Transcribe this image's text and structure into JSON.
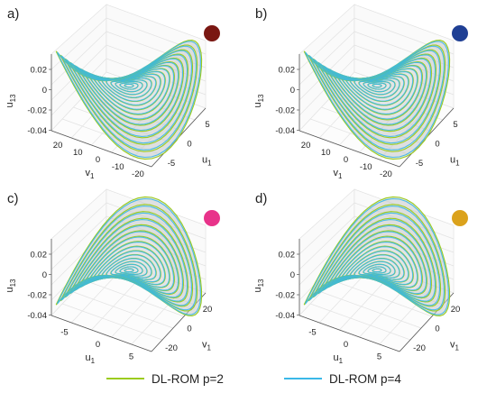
{
  "panels": [
    {
      "label": "a)",
      "dot_color": "#7a1712",
      "zlabel": "u",
      "zlabel_sub": "13",
      "ax1_label": "v",
      "ax1_sub": "1",
      "ax2_label": "u",
      "ax2_sub": "1",
      "z_ticks": [
        "0.02",
        "0",
        "-0.02",
        "-0.04"
      ],
      "ax1_ticks": [
        "20",
        "10",
        "0",
        "-10",
        "-20"
      ],
      "ax2_ticks": [
        "5",
        "0",
        "-5"
      ],
      "orientation": "a"
    },
    {
      "label": "b)",
      "dot_color": "#1f3f94",
      "zlabel": "u",
      "zlabel_sub": "13",
      "ax1_label": "v",
      "ax1_sub": "1",
      "ax2_label": "u",
      "ax2_sub": "1",
      "z_ticks": [
        "0.02",
        "0",
        "-0.02",
        "-0.04"
      ],
      "ax1_ticks": [
        "20",
        "10",
        "0",
        "-10",
        "-20"
      ],
      "ax2_ticks": [
        "5",
        "0",
        "-5"
      ],
      "orientation": "a"
    },
    {
      "label": "c)",
      "dot_color": "#e8338a",
      "zlabel": "u",
      "zlabel_sub": "13",
      "ax1_label": "u",
      "ax1_sub": "1",
      "ax2_label": "v",
      "ax2_sub": "1",
      "z_ticks": [
        "0.02",
        "0",
        "-0.02",
        "-0.04"
      ],
      "ax1_ticks": [
        "-5",
        "0",
        "5"
      ],
      "ax2_ticks": [
        "20",
        "0",
        "-20"
      ],
      "orientation": "c"
    },
    {
      "label": "d)",
      "dot_color": "#dba21c",
      "zlabel": "u",
      "zlabel_sub": "13",
      "ax1_label": "u",
      "ax1_sub": "1",
      "ax2_label": "v",
      "ax2_sub": "1",
      "z_ticks": [
        "0.02",
        "0",
        "-0.02",
        "-0.04"
      ],
      "ax1_ticks": [
        "-5",
        "0",
        "5"
      ],
      "ax2_ticks": [
        "20",
        "0",
        "-20"
      ],
      "orientation": "c"
    }
  ],
  "legend": {
    "items": [
      {
        "label": "DL-ROM p=2",
        "color": "#9ccc1e"
      },
      {
        "label": "DL-ROM p=4",
        "color": "#3ab8e8"
      }
    ]
  },
  "chart_data": {
    "type": "surface3d",
    "panels": [
      "a)",
      "b)",
      "c)",
      "d)"
    ],
    "zlabel": "u13",
    "zlim": [
      -0.04,
      0.02
    ],
    "v1_range": [
      -20,
      20
    ],
    "u1_range": [
      -5,
      5
    ],
    "series": [
      {
        "name": "DL-ROM p=2",
        "color": "#9ccc1e"
      },
      {
        "name": "DL-ROM p=4",
        "color": "#3ab8e8"
      }
    ],
    "surface_color": "#b8b8b8",
    "legend_position": "bottom",
    "grid": true
  }
}
